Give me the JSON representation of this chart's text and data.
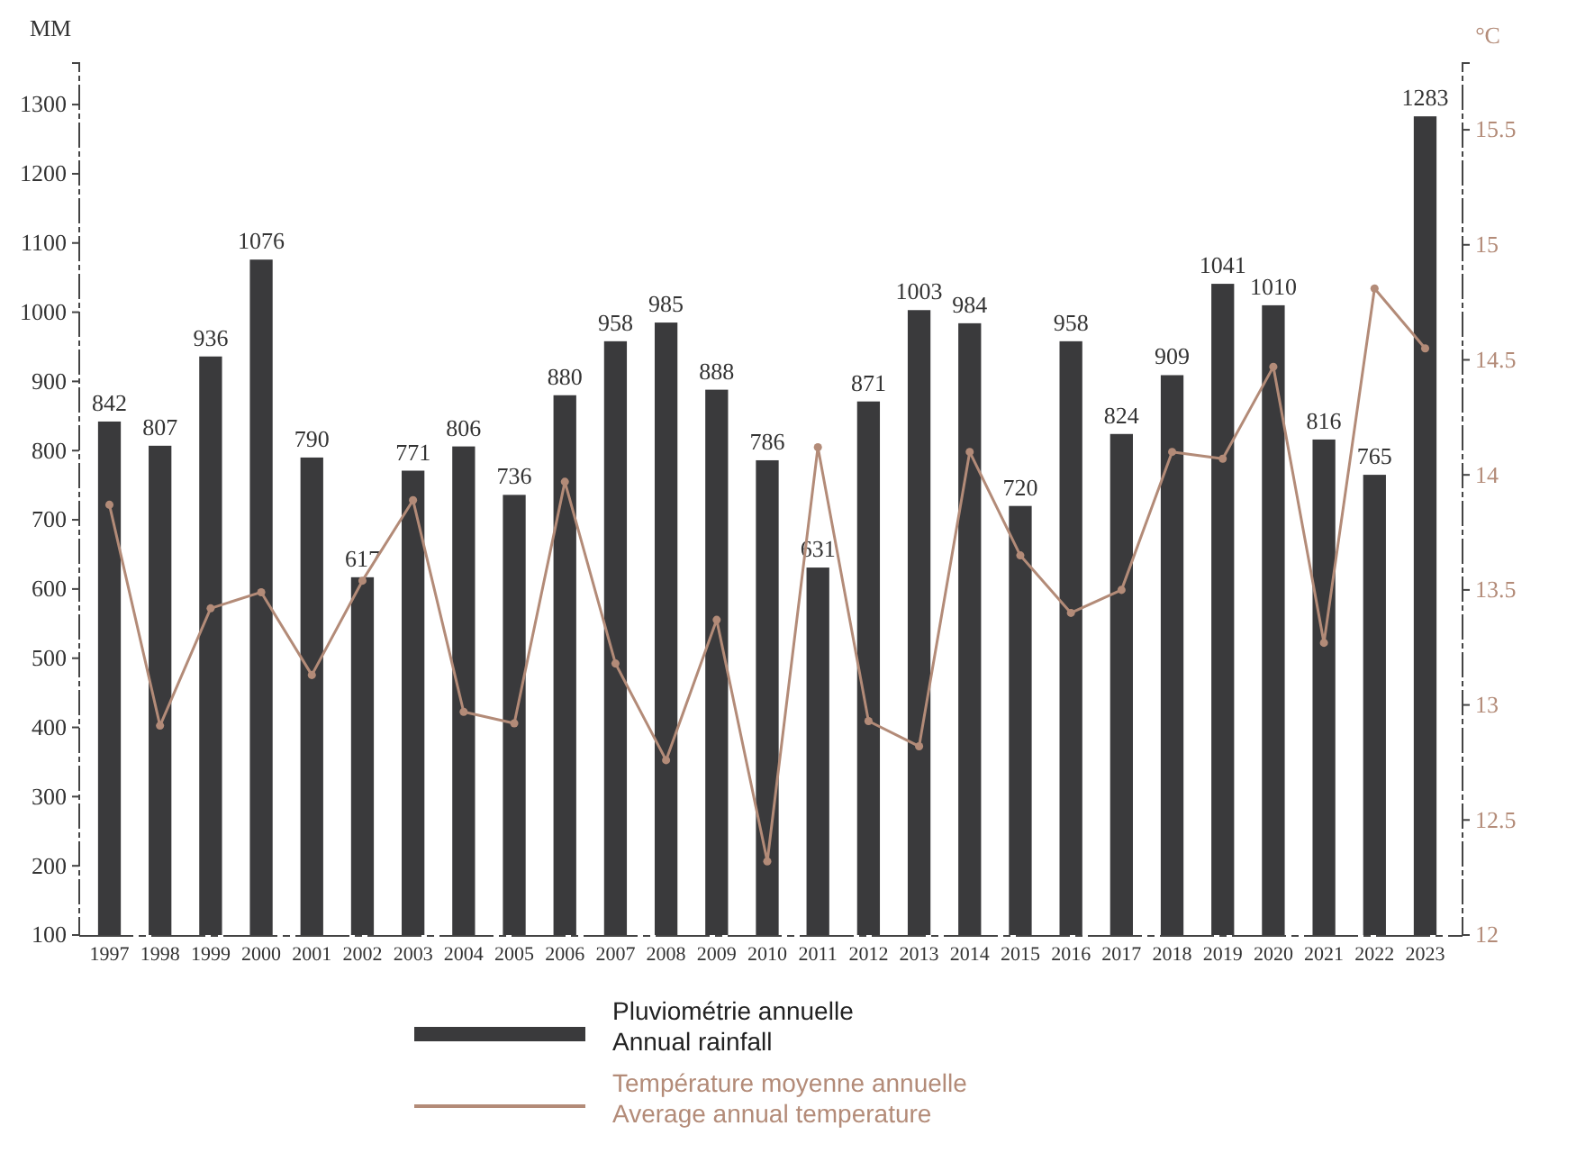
{
  "chart_data": {
    "type": "bar",
    "ylabel": "MM",
    "y2label": "°C",
    "categories": [
      "1997",
      "1998",
      "1999",
      "2000",
      "2001",
      "2002",
      "2003",
      "2004",
      "2005",
      "2006",
      "2007",
      "2008",
      "2009",
      "2010",
      "2011",
      "2012",
      "2013",
      "2014",
      "2015",
      "2016",
      "2017",
      "2018",
      "2019",
      "2020",
      "2021",
      "2022",
      "2023"
    ],
    "series": [
      {
        "name": "Pluviométrie annuelle\nAnnual rainfall",
        "color": "#3a3a3c",
        "values": [
          842,
          807,
          936,
          1076,
          790,
          617,
          771,
          806,
          736,
          880,
          958,
          985,
          888,
          786,
          631,
          871,
          1003,
          984,
          720,
          958,
          824,
          909,
          1041,
          1010,
          816,
          765,
          1283
        ],
        "value_labels": [
          "842",
          "807",
          "936",
          "1076",
          "790",
          "617",
          "771",
          "806",
          "736",
          "880",
          "958",
          "985",
          "888",
          "786",
          "631",
          "871",
          "1003",
          "984",
          "720",
          "958",
          "824",
          "909",
          "1041",
          "1010",
          "816",
          "765",
          "1283"
        ]
      },
      {
        "name": "Température moyenne annuelle\nAverage annual temperature",
        "type": "line",
        "axis": "y2",
        "color": "#b38b78",
        "marker": "circle",
        "values": [
          13.87,
          12.91,
          13.42,
          13.49,
          13.13,
          13.54,
          13.89,
          12.97,
          12.92,
          13.97,
          13.18,
          12.76,
          13.37,
          12.32,
          14.12,
          12.93,
          12.82,
          14.1,
          13.65,
          13.4,
          13.5,
          14.1,
          14.07,
          14.47,
          13.27,
          14.81,
          14.55
        ]
      }
    ],
    "ylim": [
      100,
      1360
    ],
    "yticks": [
      100,
      200,
      300,
      400,
      500,
      600,
      700,
      800,
      900,
      1000,
      1100,
      1200,
      1300
    ],
    "y2lim": [
      12,
      15.79
    ],
    "y2ticks": [
      12,
      {
        "value": 12.5,
        "label": "12.5"
      },
      13,
      {
        "value": 13.5,
        "label": "13.5"
      },
      14,
      {
        "value": 14.5,
        "label": "14.5"
      },
      15,
      {
        "value": 15.5,
        "label": "15.5"
      }
    ],
    "grid": false,
    "legend": "bottom"
  }
}
